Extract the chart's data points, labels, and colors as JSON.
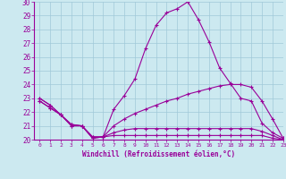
{
  "xlabel": "Windchill (Refroidissement éolien,°C)",
  "xlim": [
    -0.5,
    23
  ],
  "ylim": [
    20,
    30
  ],
  "xticks": [
    0,
    1,
    2,
    3,
    4,
    5,
    6,
    7,
    8,
    9,
    10,
    11,
    12,
    13,
    14,
    15,
    16,
    17,
    18,
    19,
    20,
    21,
    22,
    23
  ],
  "yticks": [
    20,
    21,
    22,
    23,
    24,
    25,
    26,
    27,
    28,
    29,
    30
  ],
  "background_color": "#cce9f0",
  "line_color": "#990099",
  "grid_color": "#a0c8d8",
  "lines": [
    {
      "x": [
        0,
        1,
        2,
        3,
        4,
        5,
        6,
        7,
        8,
        9,
        10,
        11,
        12,
        13,
        14,
        15,
        16,
        17,
        18,
        19,
        20,
        21,
        22,
        23
      ],
      "y": [
        23.0,
        22.5,
        21.8,
        21.1,
        21.0,
        20.2,
        20.2,
        22.2,
        23.2,
        24.4,
        26.6,
        28.3,
        29.2,
        29.5,
        30.0,
        28.7,
        27.1,
        25.2,
        24.1,
        23.0,
        22.8,
        21.2,
        20.5,
        20.1
      ]
    },
    {
      "x": [
        0,
        1,
        2,
        3,
        4,
        5,
        6,
        7,
        8,
        9,
        10,
        11,
        12,
        13,
        14,
        15,
        16,
        17,
        18,
        19,
        20,
        21,
        22,
        23
      ],
      "y": [
        23.0,
        22.5,
        21.8,
        21.1,
        21.0,
        20.2,
        20.2,
        21.0,
        21.5,
        21.9,
        22.2,
        22.5,
        22.8,
        23.0,
        23.3,
        23.5,
        23.7,
        23.9,
        24.0,
        24.0,
        23.8,
        22.8,
        21.5,
        20.1
      ]
    },
    {
      "x": [
        0,
        1,
        2,
        3,
        4,
        5,
        6,
        7,
        8,
        9,
        10,
        11,
        12,
        13,
        14,
        15,
        16,
        17,
        18,
        19,
        20,
        21,
        22,
        23
      ],
      "y": [
        22.8,
        22.3,
        21.8,
        21.0,
        21.0,
        20.1,
        20.2,
        20.5,
        20.7,
        20.8,
        20.8,
        20.8,
        20.8,
        20.8,
        20.8,
        20.8,
        20.8,
        20.8,
        20.8,
        20.8,
        20.8,
        20.6,
        20.3,
        20.0
      ]
    },
    {
      "x": [
        0,
        1,
        2,
        3,
        4,
        5,
        6,
        7,
        8,
        9,
        10,
        11,
        12,
        13,
        14,
        15,
        16,
        17,
        18,
        19,
        20,
        21,
        22,
        23
      ],
      "y": [
        22.8,
        22.3,
        21.8,
        21.0,
        21.0,
        20.1,
        20.2,
        20.3,
        20.3,
        20.3,
        20.3,
        20.3,
        20.3,
        20.3,
        20.3,
        20.3,
        20.3,
        20.3,
        20.3,
        20.3,
        20.3,
        20.3,
        20.1,
        20.0
      ]
    }
  ]
}
